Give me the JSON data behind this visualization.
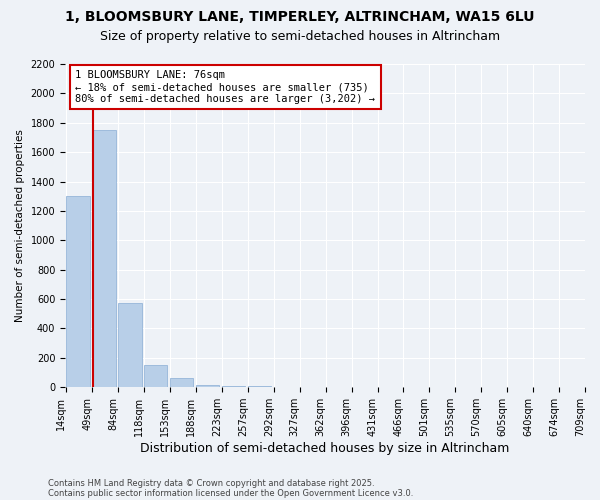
{
  "title1": "1, BLOOMSBURY LANE, TIMPERLEY, ALTRINCHAM, WA15 6LU",
  "title2": "Size of property relative to semi-detached houses in Altrincham",
  "xlabel": "Distribution of semi-detached houses by size in Altrincham",
  "ylabel": "Number of semi-detached properties",
  "bin_labels": [
    "14sqm",
    "49sqm",
    "84sqm",
    "118sqm",
    "153sqm",
    "188sqm",
    "223sqm",
    "257sqm",
    "292sqm",
    "327sqm",
    "362sqm",
    "396sqm",
    "431sqm",
    "466sqm",
    "501sqm",
    "535sqm",
    "570sqm",
    "605sqm",
    "640sqm",
    "674sqm",
    "709sqm"
  ],
  "bar_heights": [
    1300,
    1750,
    575,
    150,
    60,
    15,
    8,
    5,
    3,
    2,
    1,
    1,
    1,
    0,
    0,
    0,
    0,
    0,
    0,
    0
  ],
  "bar_color": "#b8cfe8",
  "bar_edge_color": "#8aadd4",
  "annotation_title": "1 BLOOMSBURY LANE: 76sqm",
  "annotation_line1": "← 18% of semi-detached houses are smaller (735)",
  "annotation_line2": "80% of semi-detached houses are larger (3,202) →",
  "vline_x": 0.57,
  "ylim": [
    0,
    2200
  ],
  "yticks": [
    0,
    200,
    400,
    600,
    800,
    1000,
    1200,
    1400,
    1600,
    1800,
    2000,
    2200
  ],
  "footer1": "Contains HM Land Registry data © Crown copyright and database right 2025.",
  "footer2": "Contains public sector information licensed under the Open Government Licence v3.0.",
  "bg_color": "#eef2f7",
  "grid_color": "#ffffff",
  "annotation_box_color": "#ffffff",
  "annotation_border_color": "#cc0000",
  "vline_color": "#cc0000",
  "title1_fontsize": 10,
  "title2_fontsize": 9,
  "xlabel_fontsize": 9,
  "ylabel_fontsize": 7.5,
  "tick_fontsize": 7,
  "annotation_fontsize": 7.5,
  "footer_fontsize": 6
}
